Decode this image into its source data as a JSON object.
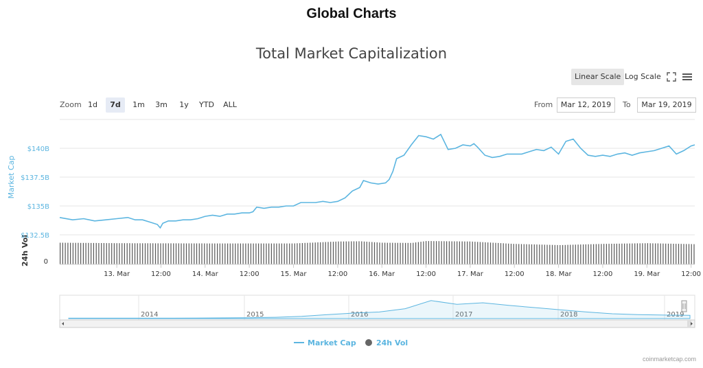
{
  "page": {
    "title": "Global Charts",
    "credit": "coinmarketcap.com"
  },
  "chart_data": {
    "type": "line",
    "title": "Total Market Capitalization",
    "ylabel": "Market Cap",
    "volume_label": "24h Vol",
    "volume_zero_label": "0",
    "y_ticks": [
      "$140B",
      "$137.5B",
      "$135B",
      "$132.5B"
    ],
    "y_tick_values": [
      140,
      137.5,
      135,
      132.5
    ],
    "ylim": [
      132.5,
      142.5
    ],
    "x_ticks": [
      "13. Mar",
      "12:00",
      "14. Mar",
      "12:00",
      "15. Mar",
      "12:00",
      "16. Mar",
      "12:00",
      "17. Mar",
      "12:00",
      "18. Mar",
      "12:00",
      "19. Mar",
      "12:00"
    ],
    "x_hours": [
      0,
      12,
      24,
      36,
      48,
      60,
      72,
      84,
      96,
      108,
      120,
      132,
      144,
      156
    ],
    "xlim_hours": [
      -15.5,
      157
    ],
    "series": [
      {
        "name": "Market Cap",
        "color": "#5bb5e0",
        "x_hours": [
          -15.5,
          -12,
          -9,
          -6,
          -3,
          0,
          3,
          5,
          7,
          9,
          11,
          11.8,
          12.5,
          14,
          16,
          18,
          20,
          22,
          24,
          26,
          28,
          30,
          32,
          34,
          36,
          37,
          38,
          40,
          42,
          44,
          46,
          48,
          50,
          52,
          54,
          56,
          58,
          60,
          62,
          64,
          66,
          67,
          69,
          71,
          73,
          74,
          75,
          76,
          78,
          80,
          82,
          84,
          86,
          88,
          90,
          92,
          94,
          96,
          97,
          98,
          100,
          102,
          104,
          106,
          108,
          110,
          112,
          114,
          116,
          118,
          120,
          122,
          124,
          126,
          128,
          130,
          132,
          134,
          136,
          138,
          140,
          142,
          144,
          146,
          148,
          150,
          152,
          154,
          156,
          157
        ],
        "values": [
          134.0,
          133.8,
          133.9,
          133.7,
          133.8,
          133.9,
          134.0,
          133.8,
          133.8,
          133.6,
          133.4,
          133.1,
          133.5,
          133.7,
          133.7,
          133.8,
          133.8,
          133.9,
          134.1,
          134.2,
          134.1,
          134.3,
          134.3,
          134.4,
          134.4,
          134.5,
          134.9,
          134.8,
          134.9,
          134.9,
          135.0,
          135.0,
          135.3,
          135.3,
          135.3,
          135.4,
          135.3,
          135.4,
          135.7,
          136.3,
          136.6,
          137.2,
          137.0,
          136.9,
          137.0,
          137.3,
          138.0,
          139.1,
          139.4,
          140.3,
          141.1,
          141.0,
          140.8,
          141.2,
          139.9,
          140.0,
          140.3,
          140.2,
          140.4,
          140.1,
          139.4,
          139.2,
          139.3,
          139.5,
          139.5,
          139.5,
          139.7,
          139.9,
          139.8,
          140.1,
          139.5,
          140.6,
          140.8,
          140.0,
          139.4,
          139.3,
          139.4,
          139.3,
          139.5,
          139.6,
          139.4,
          139.6,
          139.7,
          139.8,
          140.0,
          140.2,
          139.5,
          139.8,
          140.2,
          140.3
        ]
      },
      {
        "name": "24h Vol",
        "color": "#555555",
        "x_hours": [
          -15.5,
          0,
          24,
          48,
          60,
          66,
          72,
          80,
          84,
          96,
          108,
          120,
          132,
          144,
          150,
          157
        ],
        "values": [
          0.9,
          0.88,
          0.87,
          0.87,
          0.95,
          0.96,
          0.9,
          0.89,
          0.97,
          0.95,
          0.85,
          0.8,
          0.85,
          0.88,
          0.86,
          0.84
        ]
      }
    ],
    "navigator": {
      "years": [
        "2014",
        "2015",
        "2016",
        "2017",
        "2018",
        "2019"
      ],
      "values": [
        0.02,
        0.02,
        0.02,
        0.02,
        0.02,
        0.025,
        0.03,
        0.04,
        0.06,
        0.1,
        0.18,
        0.25,
        0.3,
        0.45,
        0.82,
        0.65,
        0.72,
        0.6,
        0.5,
        0.4,
        0.3,
        0.22,
        0.18,
        0.16,
        0.15
      ]
    },
    "legend": [
      {
        "label": "Market Cap",
        "color": "#5bb5e0",
        "marker": "line"
      },
      {
        "label": "24h Vol",
        "color": "#666666",
        "marker": "circle"
      }
    ]
  },
  "toolbar": {
    "linear_scale": "Linear Scale",
    "log_scale": "Log Scale",
    "fullscreen_icon": "fullscreen-icon",
    "menu_icon": "menu-icon"
  },
  "zoom": {
    "label": "Zoom",
    "options": [
      "1d",
      "7d",
      "1m",
      "3m",
      "1y",
      "YTD",
      "ALL"
    ],
    "selected": "7d"
  },
  "range": {
    "from_label": "From",
    "from_value": "Mar 12, 2019",
    "to_label": "To",
    "to_value": "Mar 19, 2019"
  }
}
